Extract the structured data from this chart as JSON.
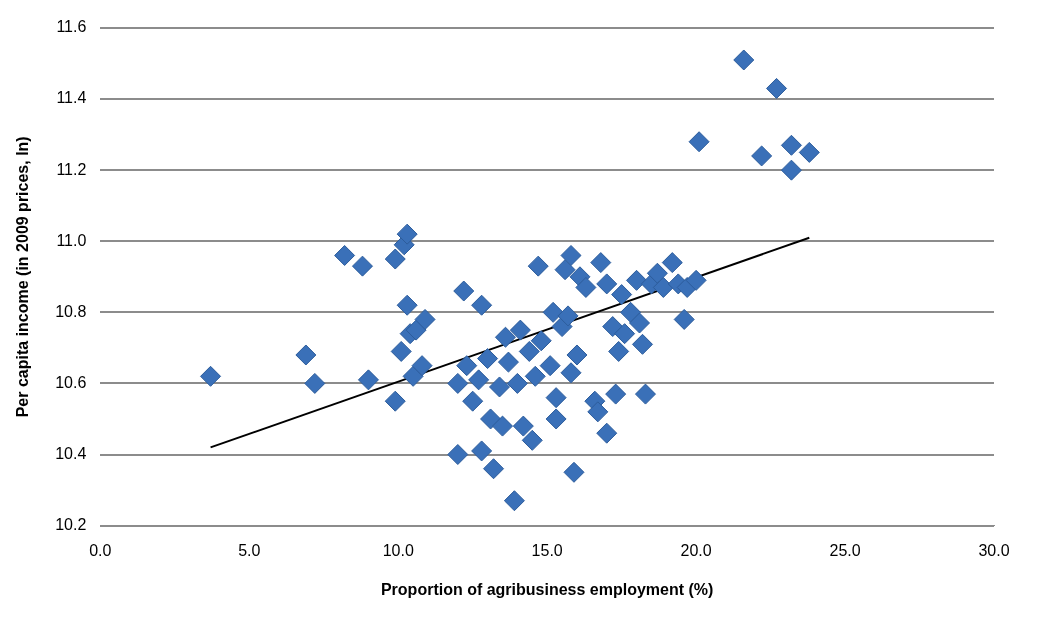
{
  "chart_data": {
    "type": "scatter",
    "xlabel": "Proportion of agribusiness employment (%)",
    "ylabel": "Per capita income (in 2009 prices, ln)",
    "xlim": [
      0,
      30
    ],
    "xticks": [
      {
        "value": 0,
        "label": "0.0"
      },
      {
        "value": 5,
        "label": "5.0"
      },
      {
        "value": 10,
        "label": "10.0"
      },
      {
        "value": 15,
        "label": "15.0"
      },
      {
        "value": 20,
        "label": "20.0"
      },
      {
        "value": 25,
        "label": "25.0"
      },
      {
        "value": 30,
        "label": "30.0"
      }
    ],
    "ylim": [
      10.2,
      11.6
    ],
    "yticks": [
      10.2,
      10.4,
      10.6,
      10.8,
      {
        "value": 11,
        "label": "11.0"
      },
      11.2,
      11.4,
      11.6
    ],
    "grid": "y",
    "legend": false,
    "series": [
      {
        "color": "#3a70b8",
        "marker": "diamond",
        "x": [
          3.7,
          6.9,
          7.2,
          8.2,
          8.8,
          9.0,
          9.9,
          9.9,
          10.1,
          10.2,
          10.3,
          10.3,
          10.4,
          10.5,
          10.6,
          10.8,
          10.9,
          12.0,
          12.0,
          12.2,
          12.3,
          12.5,
          12.7,
          12.8,
          12.8,
          13.0,
          13.1,
          13.2,
          13.4,
          13.5,
          13.6,
          13.7,
          13.9,
          14.0,
          14.1,
          14.2,
          14.4,
          14.5,
          14.6,
          14.7,
          14.8,
          15.1,
          15.2,
          15.3,
          15.3,
          15.5,
          15.6,
          15.7,
          15.8,
          15.8,
          15.9,
          16.0,
          16.1,
          16.3,
          16.6,
          16.7,
          16.8,
          17.0,
          17.0,
          17.2,
          17.3,
          17.4,
          17.5,
          17.6,
          17.8,
          18.0,
          18.1,
          18.2,
          18.3,
          18.5,
          18.7,
          18.9,
          19.2,
          19.4,
          19.6,
          19.7,
          20.0,
          20.1,
          21.6,
          22.2,
          22.7,
          23.2,
          23.2,
          23.8
        ],
        "values": [
          10.62,
          10.68,
          10.6,
          10.96,
          10.93,
          10.61,
          10.95,
          10.55,
          10.69,
          10.99,
          11.02,
          10.82,
          10.74,
          10.62,
          10.75,
          10.65,
          10.78,
          10.6,
          10.4,
          10.86,
          10.65,
          10.55,
          10.61,
          10.82,
          10.41,
          10.67,
          10.5,
          10.36,
          10.59,
          10.48,
          10.73,
          10.66,
          10.27,
          10.6,
          10.75,
          10.48,
          10.69,
          10.44,
          10.62,
          10.93,
          10.72,
          10.65,
          10.8,
          10.56,
          10.5,
          10.76,
          10.92,
          10.79,
          10.96,
          10.63,
          10.35,
          10.68,
          10.9,
          10.87,
          10.55,
          10.52,
          10.94,
          10.88,
          10.46,
          10.76,
          10.57,
          10.69,
          10.85,
          10.74,
          10.8,
          10.89,
          10.77,
          10.71,
          10.57,
          10.88,
          10.91,
          10.87,
          10.94,
          10.88,
          10.78,
          10.87,
          10.89,
          11.28,
          11.51,
          11.24,
          11.43,
          11.27,
          11.2,
          11.25
        ]
      },
      {
        "type": "line",
        "color": "#000000",
        "marker": "none",
        "line_style": "solid",
        "x": [
          3.7,
          23.8
        ],
        "values": [
          10.42,
          11.01
        ]
      }
    ]
  }
}
